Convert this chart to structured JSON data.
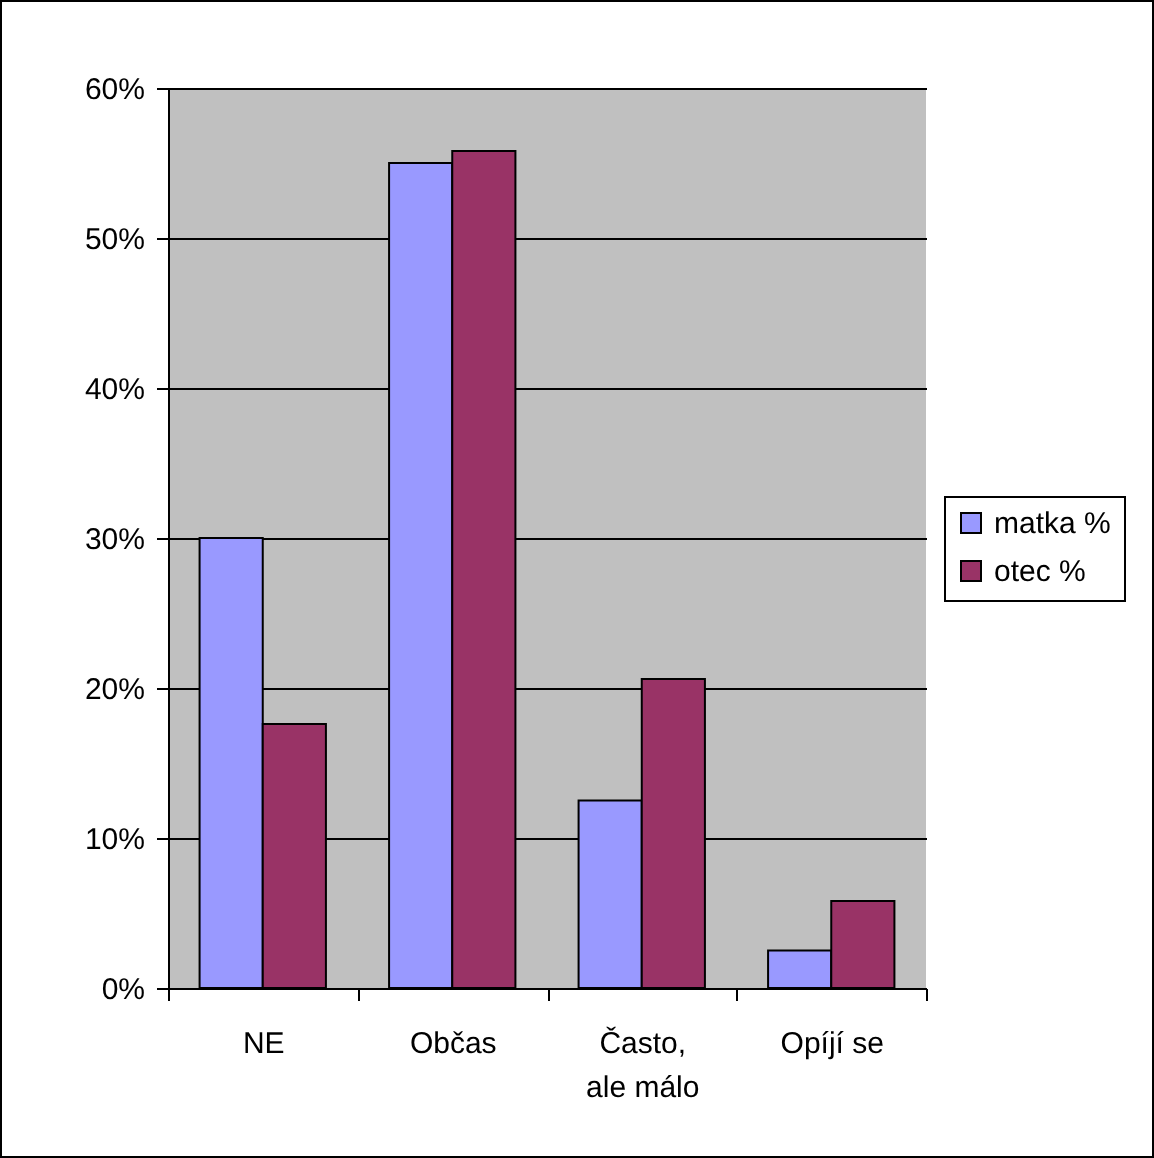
{
  "chart_data": {
    "type": "bar",
    "categories": [
      "NE",
      "Občas",
      "Často, ale málo",
      "Opíjí se"
    ],
    "series": [
      {
        "name": "matka %",
        "color": "#9999ff",
        "values": [
          30,
          55,
          12.5,
          2.5
        ]
      },
      {
        "name": "otec %",
        "color": "#993366",
        "values": [
          17.6,
          55.8,
          20.6,
          5.8
        ]
      }
    ],
    "ylim": [
      0,
      60
    ],
    "yticks": [
      {
        "value": 0,
        "label": "0%"
      },
      {
        "value": 10,
        "label": "10%"
      },
      {
        "value": 20,
        "label": "20%"
      },
      {
        "value": 30,
        "label": "30%"
      },
      {
        "value": 40,
        "label": "40%"
      },
      {
        "value": 50,
        "label": "50%"
      },
      {
        "value": 60,
        "label": "60%"
      }
    ],
    "grid": "y",
    "legend": "right"
  }
}
